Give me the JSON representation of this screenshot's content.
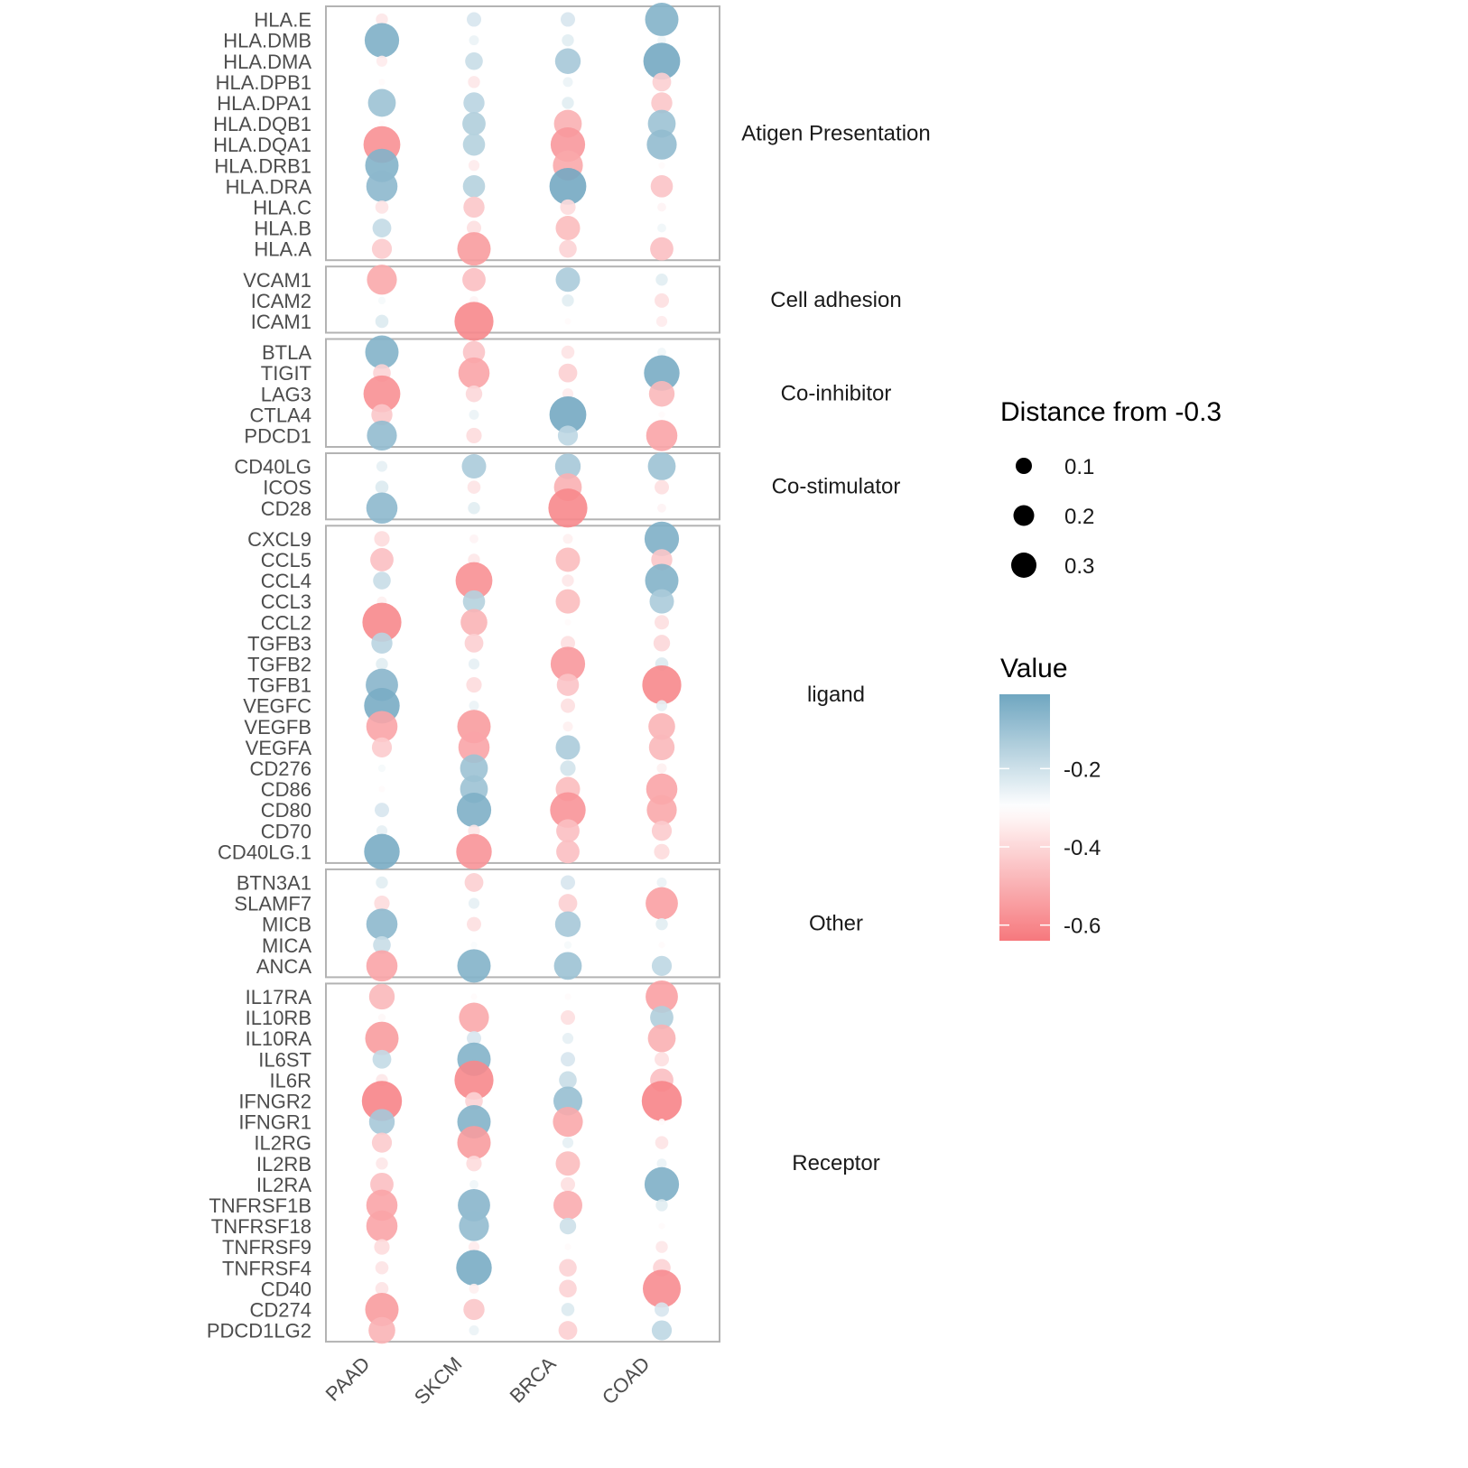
{
  "chart_data": {
    "type": "scatter",
    "subtype": "faceted dot plot (bubble heatmap)",
    "categories": [
      "PAAD",
      "SKCM",
      "BRCA",
      "COAD"
    ],
    "size_legend": {
      "title": "Distance from -0.3",
      "breaks": [
        0.1,
        0.2,
        0.3
      ],
      "labels": [
        "0.1",
        "0.2",
        "0.3"
      ],
      "reference": -0.3
    },
    "color_legend": {
      "title": "Value",
      "ticks": [
        -0.2,
        -0.4,
        -0.6
      ],
      "tick_labels": [
        "-0.2",
        "-0.4",
        "-0.6"
      ],
      "range": [
        -0.64,
        -0.01
      ],
      "midpoint": -0.3,
      "high_color": "#6fa6c0",
      "mid_color": "#ffffff",
      "low_color": "#f6787d"
    },
    "legend_position": "right",
    "grid": false,
    "facets": [
      {
        "label": "Atigen Presentation",
        "rows": [
          {
            "gene": "HLA.E",
            "values": [
              -0.36,
              -0.22,
              -0.22,
              -0.05
            ]
          },
          {
            "gene": "HLA.DMB",
            "values": [
              -0.04,
              -0.26,
              -0.24,
              -0.27
            ]
          },
          {
            "gene": "HLA.DMA",
            "values": [
              -0.35,
              -0.19,
              -0.12,
              -0.02
            ]
          },
          {
            "gene": "HLA.DPB1",
            "values": [
              -0.31,
              -0.36,
              -0.26,
              -0.42
            ]
          },
          {
            "gene": "HLA.DPA1",
            "values": [
              -0.1,
              -0.16,
              -0.24,
              -0.44
            ]
          },
          {
            "gene": "HLA.DQB1",
            "values": [
              -0.31,
              -0.14,
              -0.5,
              -0.1
            ]
          },
          {
            "gene": "HLA.DQA1",
            "values": [
              -0.58,
              -0.15,
              -0.56,
              -0.08
            ]
          },
          {
            "gene": "HLA.DRB1",
            "values": [
              -0.05,
              -0.35,
              -0.52,
              -0.31
            ]
          },
          {
            "gene": "HLA.DRA",
            "values": [
              -0.07,
              -0.15,
              -0.02,
              -0.45
            ]
          },
          {
            "gene": "HLA.C",
            "values": [
              -0.37,
              -0.44,
              -0.39,
              -0.33
            ]
          },
          {
            "gene": "HLA.B",
            "values": [
              -0.18,
              -0.38,
              -0.47,
              -0.27
            ]
          },
          {
            "gene": "HLA.A",
            "values": [
              -0.43,
              -0.55,
              -0.41,
              -0.46
            ]
          }
        ]
      },
      {
        "label": "Cell adhesion",
        "rows": [
          {
            "gene": "VCAM1",
            "values": [
              -0.52,
              -0.46,
              -0.13,
              -0.24
            ]
          },
          {
            "gene": "ICAM2",
            "values": [
              -0.28,
              -0.33,
              -0.24,
              -0.38
            ]
          },
          {
            "gene": "ICAM1",
            "values": [
              -0.23,
              -0.6,
              -0.31,
              -0.35
            ]
          }
        ]
      },
      {
        "label": "Co-inhibitor",
        "rows": [
          {
            "gene": "BTLA",
            "values": [
              -0.05,
              -0.45,
              -0.37,
              -0.27
            ]
          },
          {
            "gene": "TIGIT",
            "values": [
              -0.41,
              -0.53,
              -0.42,
              -0.03
            ]
          },
          {
            "gene": "LAG3",
            "values": [
              -0.58,
              -0.4,
              -0.35,
              -0.48
            ]
          },
          {
            "gene": "CTLA4",
            "values": [
              -0.44,
              -0.26,
              -0.02,
              -0.31
            ]
          },
          {
            "gene": "PDCD1",
            "values": [
              -0.08,
              -0.39,
              -0.17,
              -0.53
            ]
          }
        ]
      },
      {
        "label": "Co-stimulator",
        "rows": [
          {
            "gene": "CD40LG",
            "values": [
              -0.25,
              -0.13,
              -0.12,
              -0.1
            ]
          },
          {
            "gene": "ICOS",
            "values": [
              -0.23,
              -0.37,
              -0.5,
              -0.38
            ]
          },
          {
            "gene": "CD28",
            "values": [
              -0.07,
              -0.24,
              -0.6,
              -0.33
            ]
          }
        ]
      },
      {
        "label": "ligand",
        "rows": [
          {
            "gene": "CXCL9",
            "values": [
              -0.39,
              -0.33,
              -0.34,
              -0.04
            ]
          },
          {
            "gene": "CCL5",
            "values": [
              -0.46,
              -0.36,
              -0.47,
              -0.44
            ]
          },
          {
            "gene": "CCL4",
            "values": [
              -0.19,
              -0.58,
              -0.36,
              -0.05
            ]
          },
          {
            "gene": "CCL3",
            "values": [
              -0.34,
              -0.15,
              -0.47,
              -0.13
            ]
          },
          {
            "gene": "CCL2",
            "values": [
              -0.6,
              -0.49,
              -0.31,
              -0.38
            ]
          },
          {
            "gene": "TGFB3",
            "values": [
              -0.16,
              -0.42,
              -0.38,
              -0.4
            ]
          },
          {
            "gene": "TGFB2",
            "values": [
              -0.24,
              -0.25,
              -0.56,
              -0.23
            ]
          },
          {
            "gene": "TGFB1",
            "values": [
              -0.06,
              -0.39,
              -0.45,
              -0.6
            ]
          },
          {
            "gene": "VEGFC",
            "values": [
              -0.03,
              -0.26,
              -0.38,
              -0.25
            ]
          },
          {
            "gene": "VEGFB",
            "values": [
              -0.53,
              -0.55,
              -0.34,
              -0.49
            ]
          },
          {
            "gene": "VEGFA",
            "values": [
              -0.43,
              -0.53,
              -0.13,
              -0.48
            ]
          },
          {
            "gene": "CD276",
            "values": [
              -0.28,
              -0.1,
              -0.21,
              -0.34
            ]
          },
          {
            "gene": "CD86",
            "values": [
              -0.31,
              -0.1,
              -0.47,
              -0.53
            ]
          },
          {
            "gene": "CD80",
            "values": [
              -0.22,
              -0.04,
              -0.57,
              -0.52
            ]
          },
          {
            "gene": "CD70",
            "values": [
              -0.25,
              -0.36,
              -0.46,
              -0.43
            ]
          },
          {
            "gene": "CD40LG.1",
            "values": [
              -0.03,
              -0.57,
              -0.46,
              -0.39
            ]
          }
        ]
      },
      {
        "label": "Other",
        "rows": [
          {
            "gene": "BTN3A1",
            "values": [
              -0.24,
              -0.42,
              -0.22,
              -0.26
            ]
          },
          {
            "gene": "SLAMF7",
            "values": [
              -0.39,
              -0.25,
              -0.42,
              -0.54
            ]
          },
          {
            "gene": "MICB",
            "values": [
              -0.07,
              -0.38,
              -0.12,
              -0.24
            ]
          },
          {
            "gene": "MICA",
            "values": [
              -0.19,
              -0.29,
              -0.28,
              -0.31
            ]
          },
          {
            "gene": "ANCA",
            "values": [
              -0.53,
              -0.05,
              -0.1,
              -0.17
            ]
          }
        ]
      },
      {
        "label": "Receptor",
        "rows": [
          {
            "gene": "IL17RA",
            "values": [
              -0.48,
              -0.31,
              -0.31,
              -0.54
            ]
          },
          {
            "gene": "IL10RB",
            "values": [
              -0.32,
              -0.52,
              -0.38,
              -0.14
            ]
          },
          {
            "gene": "IL10RA",
            "values": [
              -0.55,
              -0.22,
              -0.25,
              -0.5
            ]
          },
          {
            "gene": "IL6ST",
            "values": [
              -0.18,
              -0.05,
              -0.22,
              -0.38
            ]
          },
          {
            "gene": "IL6R",
            "values": [
              -0.36,
              -0.6,
              -0.19,
              -0.46
            ]
          },
          {
            "gene": "IFNGR2",
            "values": [
              -0.61,
              -0.41,
              -0.09,
              -0.61
            ]
          },
          {
            "gene": "IFNGR1",
            "values": [
              -0.12,
              -0.05,
              -0.52,
              -0.31
            ]
          },
          {
            "gene": "IL2RG",
            "values": [
              -0.43,
              -0.55,
              -0.25,
              -0.37
            ]
          },
          {
            "gene": "IL2RB",
            "values": [
              -0.36,
              -0.39,
              -0.47,
              -0.26
            ]
          },
          {
            "gene": "IL2RA",
            "values": [
              -0.46,
              -0.27,
              -0.38,
              -0.04
            ]
          },
          {
            "gene": "TNFRSF1B",
            "values": [
              -0.53,
              -0.06,
              -0.51,
              -0.24
            ]
          },
          {
            "gene": "TNFRSF18",
            "values": [
              -0.53,
              -0.08,
              -0.2,
              -0.31
            ]
          },
          {
            "gene": "TNFRSF9",
            "values": [
              -0.39,
              -0.35,
              -0.31,
              -0.36
            ]
          },
          {
            "gene": "TNFRSF4",
            "values": [
              -0.37,
              -0.03,
              -0.41,
              -0.41
            ]
          },
          {
            "gene": "CD40",
            "values": [
              -0.37,
              -0.34,
              -0.41,
              -0.59
            ]
          },
          {
            "gene": "CD274",
            "values": [
              -0.55,
              -0.44,
              -0.23,
              -0.22
            ]
          },
          {
            "gene": "PDCD1LG2",
            "values": [
              -0.49,
              -0.26,
              -0.42,
              -0.17
            ]
          }
        ]
      }
    ]
  }
}
